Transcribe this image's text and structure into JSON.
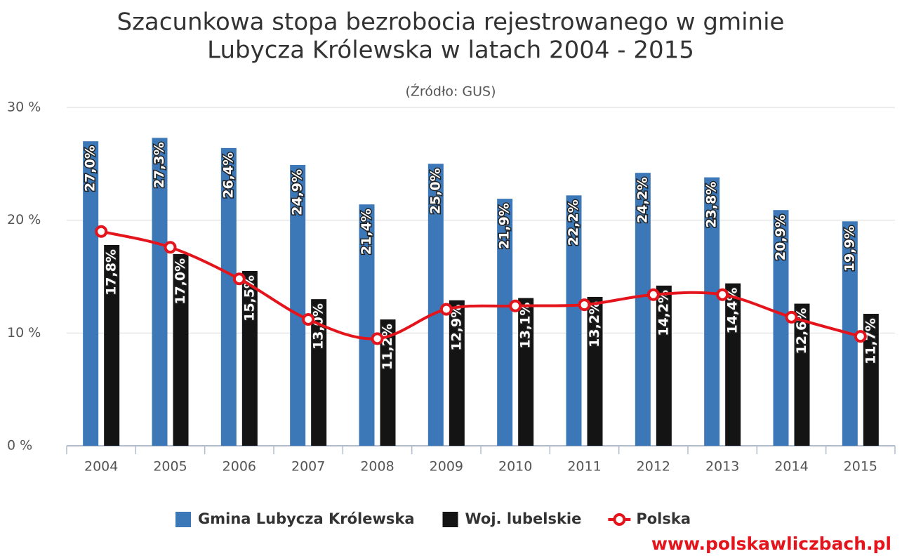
{
  "chart_data": {
    "type": "bar",
    "title": "Szacunkowa stopa bezrobocia rejestrowanego w gminie",
    "title_line2": "Lubycza Królewska w latach 2004 - 2015",
    "subtitle": "(Źródło: GUS)",
    "watermark": "www.polskawliczbach.pl",
    "categories": [
      "2004",
      "2005",
      "2006",
      "2007",
      "2008",
      "2009",
      "2010",
      "2011",
      "2012",
      "2013",
      "2014",
      "2015"
    ],
    "series": [
      {
        "name": "Gmina Lubycza Królewska",
        "type": "bar",
        "color": "#3c78b8",
        "values": [
          27.0,
          27.3,
          26.4,
          24.9,
          21.4,
          25.0,
          21.9,
          22.2,
          24.2,
          23.8,
          20.9,
          19.9
        ],
        "value_labels": [
          "27,0%",
          "27,3%",
          "26,4%",
          "24,9%",
          "21,4%",
          "25,0%",
          "21,9%",
          "22,2%",
          "24,2%",
          "23,8%",
          "20,9%",
          "19,9%"
        ]
      },
      {
        "name": "Woj. lubelskie",
        "type": "bar",
        "color": "#141414",
        "values": [
          17.8,
          17.0,
          15.5,
          13.0,
          11.2,
          12.9,
          13.1,
          13.2,
          14.2,
          14.4,
          12.6,
          11.7
        ],
        "value_labels": [
          "17,8%",
          "17,0%",
          "15,5%",
          "13,0%",
          "11,2%",
          "12,9%",
          "13,1%",
          "13,2%",
          "14,2%",
          "14,4%",
          "12,6%",
          "11,7%"
        ]
      },
      {
        "name": "Polska",
        "type": "line",
        "color": "#e3141b",
        "values": [
          19.0,
          17.6,
          14.8,
          11.2,
          9.5,
          12.1,
          12.4,
          12.5,
          13.4,
          13.4,
          11.4,
          9.7
        ]
      }
    ],
    "ylim": [
      0,
      30
    ],
    "yticks": [
      {
        "value": 0,
        "label": "0 %"
      },
      {
        "value": 10,
        "label": "10 %"
      },
      {
        "value": 20,
        "label": "20 %"
      },
      {
        "value": 30,
        "label": "30 %"
      }
    ],
    "grid": true,
    "legend": "bottom"
  }
}
